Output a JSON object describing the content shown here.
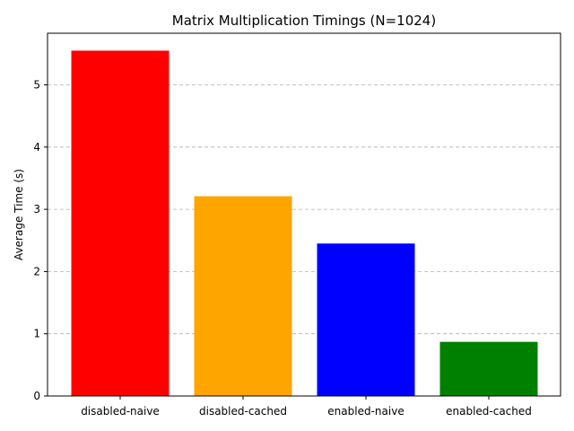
{
  "chart_data": {
    "type": "bar",
    "title": "Matrix Multiplication Timings (N=1024)",
    "xlabel": "",
    "ylabel": "Average Time (s)",
    "categories": [
      "disabled-naive",
      "disabled-cached",
      "enabled-naive",
      "enabled-cached"
    ],
    "values": [
      5.55,
      3.21,
      2.45,
      0.87
    ],
    "colors": [
      "#ff0000",
      "#ffa500",
      "#0000ff",
      "#008000"
    ],
    "ylim": [
      0,
      5.83
    ],
    "yticks": [
      0,
      1,
      2,
      3,
      4,
      5
    ],
    "grid": "y-dashed",
    "legend": "none"
  }
}
